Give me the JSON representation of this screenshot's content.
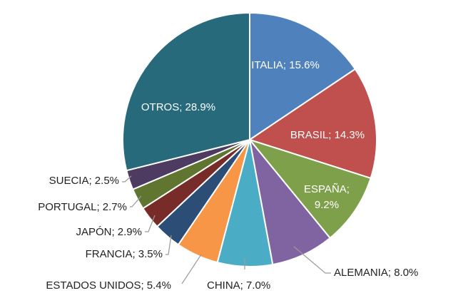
{
  "chart_data": {
    "type": "pie",
    "title": "",
    "slices": [
      {
        "label": "ITALIA",
        "value": 15.6,
        "display": "ITALIA; 15.6%",
        "color": "#4f81bd"
      },
      {
        "label": "BRASIL",
        "value": 14.3,
        "display": "BRASIL; 14.3%",
        "color": "#c0504d"
      },
      {
        "label": "ESPAÑA",
        "value": 9.2,
        "display": "ESPAÑA;\n9.2%",
        "color": "#7fa04a"
      },
      {
        "label": "ALEMANIA",
        "value": 8.0,
        "display": "ALEMANIA; 8.0%",
        "color": "#8064a2"
      },
      {
        "label": "CHINA",
        "value": 7.0,
        "display": "CHINA; 7.0%",
        "color": "#4bacc6"
      },
      {
        "label": "ESTADOS UNIDOS",
        "value": 5.4,
        "display": "ESTADOS UNIDOS; 5.4%",
        "color": "#f79646"
      },
      {
        "label": "FRANCIA",
        "value": 3.5,
        "display": "FRANCIA; 3.5%",
        "color": "#2c4d75"
      },
      {
        "label": "JAPÓN",
        "value": 2.9,
        "display": "JAPÓN; 2.9%",
        "color": "#772c2a"
      },
      {
        "label": "PORTUGAL",
        "value": 2.7,
        "display": "PORTUGAL; 2.7%",
        "color": "#5f7530"
      },
      {
        "label": "SUECIA",
        "value": 2.5,
        "display": "SUECIA; 2.5%",
        "color": "#4d3b62"
      },
      {
        "label": "OTROS",
        "value": 28.9,
        "display": "OTROS; 28.9%",
        "color": "#276a7c"
      }
    ],
    "start_angle": "12 o'clock",
    "direction": "clockwise",
    "legend": "none"
  }
}
